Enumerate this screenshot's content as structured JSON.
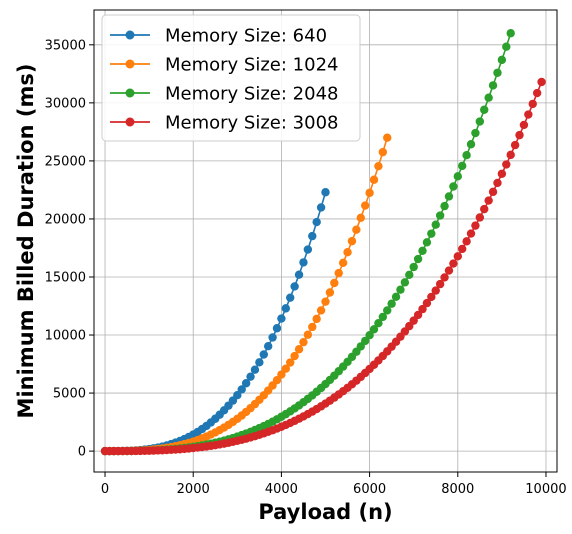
{
  "chart_data": {
    "type": "line",
    "xlabel": "Payload (n)",
    "ylabel": "Minimum Billed Duration (ms)",
    "xlim": [
      -250,
      10250
    ],
    "ylim": [
      -1800,
      38000
    ],
    "xticks": [
      0,
      2000,
      4000,
      6000,
      8000,
      10000
    ],
    "yticks": [
      0,
      5000,
      10000,
      15000,
      20000,
      25000,
      30000,
      35000
    ],
    "grid": true,
    "legend_position": "top-left",
    "series": [
      {
        "name": "Memory Size: 640",
        "color": "#1f77b4",
        "x_start": 0,
        "x_end": 5000,
        "x_step": 100,
        "y_end": 22300,
        "exponent": 3
      },
      {
        "name": "Memory Size: 1024",
        "color": "#ff7f0e",
        "x_start": 0,
        "x_end": 6400,
        "x_step": 100,
        "y_end": 27000,
        "exponent": 3
      },
      {
        "name": "Memory Size: 2048",
        "color": "#2ca02c",
        "x_start": 0,
        "x_end": 9200,
        "x_step": 100,
        "y_end": 36000,
        "exponent": 3
      },
      {
        "name": "Memory Size: 3008",
        "color": "#d62728",
        "x_start": 0,
        "x_end": 9900,
        "x_step": 100,
        "y_end": 31800,
        "exponent": 3
      }
    ]
  }
}
